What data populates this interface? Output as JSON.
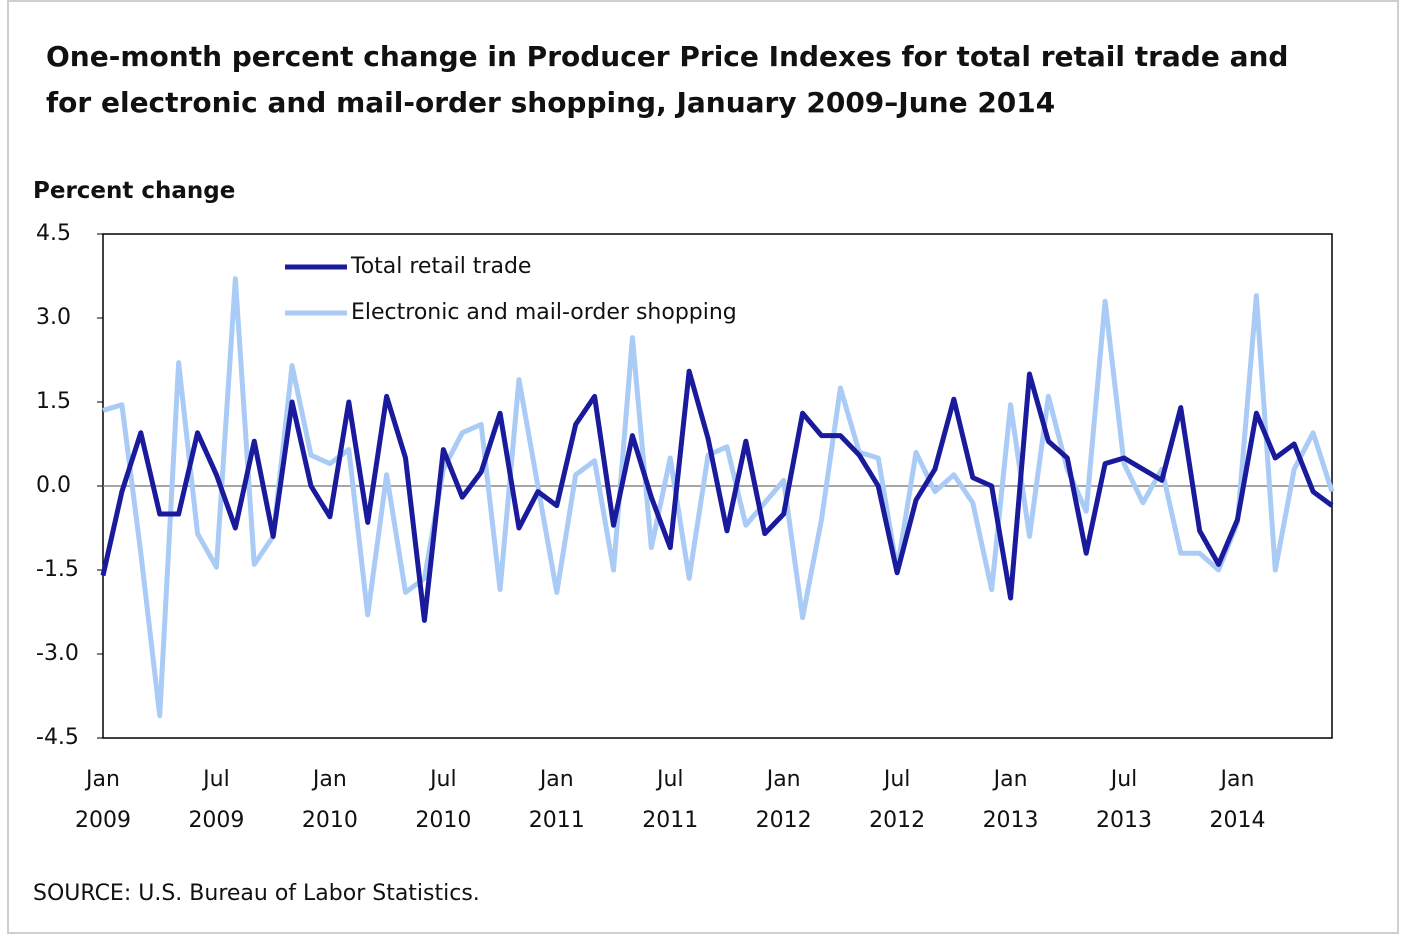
{
  "chart_data": {
    "type": "line",
    "title": "One-month percent change in Producer Price Indexes for total retail trade and for electronic and mail-order shopping, January 2009–June 2014",
    "y_label": "Percent change",
    "source": "SOURCE: U.S. Bureau of Labor Statistics.",
    "categories": [
      "Jan 2009",
      null,
      null,
      null,
      null,
      null,
      "Jul 2009",
      null,
      null,
      null,
      null,
      null,
      "Jan 2010",
      null,
      null,
      null,
      null,
      null,
      "Jul 2010",
      null,
      null,
      null,
      null,
      null,
      "Jan 2011",
      null,
      null,
      null,
      null,
      null,
      "Jul 2011",
      null,
      null,
      null,
      null,
      null,
      "Jan 2012",
      null,
      null,
      null,
      null,
      null,
      "Jul 2012",
      null,
      null,
      null,
      null,
      null,
      "Jan 2013",
      null,
      null,
      null,
      null,
      null,
      "Jul 2013",
      null,
      null,
      null,
      null,
      null,
      "Jan 2014",
      null,
      null,
      null,
      null,
      null
    ],
    "series": [
      {
        "name": "Total retail trade",
        "color": "#1a1a9c",
        "values": [
          -1.6,
          -0.1,
          0.95,
          -0.5,
          -0.5,
          0.95,
          0.2,
          -0.75,
          0.8,
          -0.9,
          1.5,
          0.0,
          -0.55,
          1.5,
          -0.65,
          1.6,
          0.5,
          -2.4,
          0.65,
          -0.2,
          0.25,
          1.3,
          -0.75,
          -0.1,
          -0.35,
          1.1,
          1.6,
          -0.7,
          0.9,
          -0.2,
          -1.1,
          2.05,
          0.85,
          -0.8,
          0.8,
          -0.85,
          -0.5,
          1.3,
          0.9,
          0.9,
          0.55,
          0.0,
          -1.55,
          -0.25,
          0.3,
          1.55,
          0.15,
          0.0,
          -2.0,
          2.0,
          0.8,
          0.5,
          -1.2,
          0.4,
          0.5,
          0.3,
          0.1,
          1.4,
          -0.8,
          -1.4,
          -0.6,
          1.3,
          0.5,
          0.75,
          -0.1,
          -0.35
        ]
      },
      {
        "name": "Electronic and mail-order shopping",
        "color": "#a9cbf5",
        "values": [
          1.35,
          1.45,
          -1.2,
          -4.1,
          2.2,
          -0.85,
          -1.45,
          3.7,
          -1.4,
          -0.9,
          2.15,
          0.55,
          0.4,
          0.65,
          -2.3,
          0.2,
          -1.9,
          -1.65,
          0.3,
          0.95,
          1.1,
          -1.85,
          1.9,
          0.0,
          -1.9,
          0.2,
          0.45,
          -1.5,
          2.65,
          -1.1,
          0.5,
          -1.65,
          0.55,
          0.7,
          -0.7,
          -0.3,
          0.1,
          -2.35,
          -0.6,
          1.75,
          0.6,
          0.5,
          -1.5,
          0.6,
          -0.1,
          0.2,
          -0.3,
          -1.85,
          1.45,
          -0.9,
          1.6,
          0.3,
          -0.45,
          3.3,
          0.4,
          -0.3,
          0.3,
          -1.2,
          -1.2,
          -1.5,
          -0.65,
          3.4,
          -1.5,
          0.3,
          0.95,
          -0.1
        ]
      }
    ],
    "ylim": [
      -4.5,
      4.5
    ],
    "yticks": [
      4.5,
      {
        "value": 3,
        "label": "3.0"
      },
      1.5,
      {
        "value": 0,
        "label": "0.0"
      },
      -1.5,
      {
        "value": -3,
        "label": "-3.0"
      },
      -4.5
    ],
    "zero_line": true
  }
}
